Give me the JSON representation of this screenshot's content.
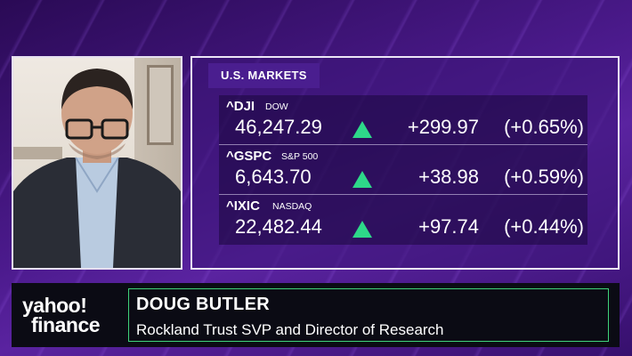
{
  "markets": {
    "title": "U.S. MARKETS",
    "rows": [
      {
        "symbol": "^DJI",
        "name": "DOW",
        "price": "46,247.29",
        "change": "+299.97",
        "pct": "(+0.65%)",
        "direction": "up"
      },
      {
        "symbol": "^GSPC",
        "name": "S&P 500",
        "price": "6,643.70",
        "change": "+38.98",
        "pct": "(+0.59%)",
        "direction": "up"
      },
      {
        "symbol": "^IXIC",
        "name": "NASDAQ",
        "price": "22,482.44",
        "change": "+97.74",
        "pct": "(+0.44%)",
        "direction": "up"
      }
    ],
    "up_color": "#2ed889"
  },
  "lower_third": {
    "logo_line1": "yahoo!",
    "logo_line2": "finance",
    "name": "DOUG BUTLER",
    "title": "Rockland Trust SVP and Director of Research",
    "accent": "#3fd27a"
  }
}
